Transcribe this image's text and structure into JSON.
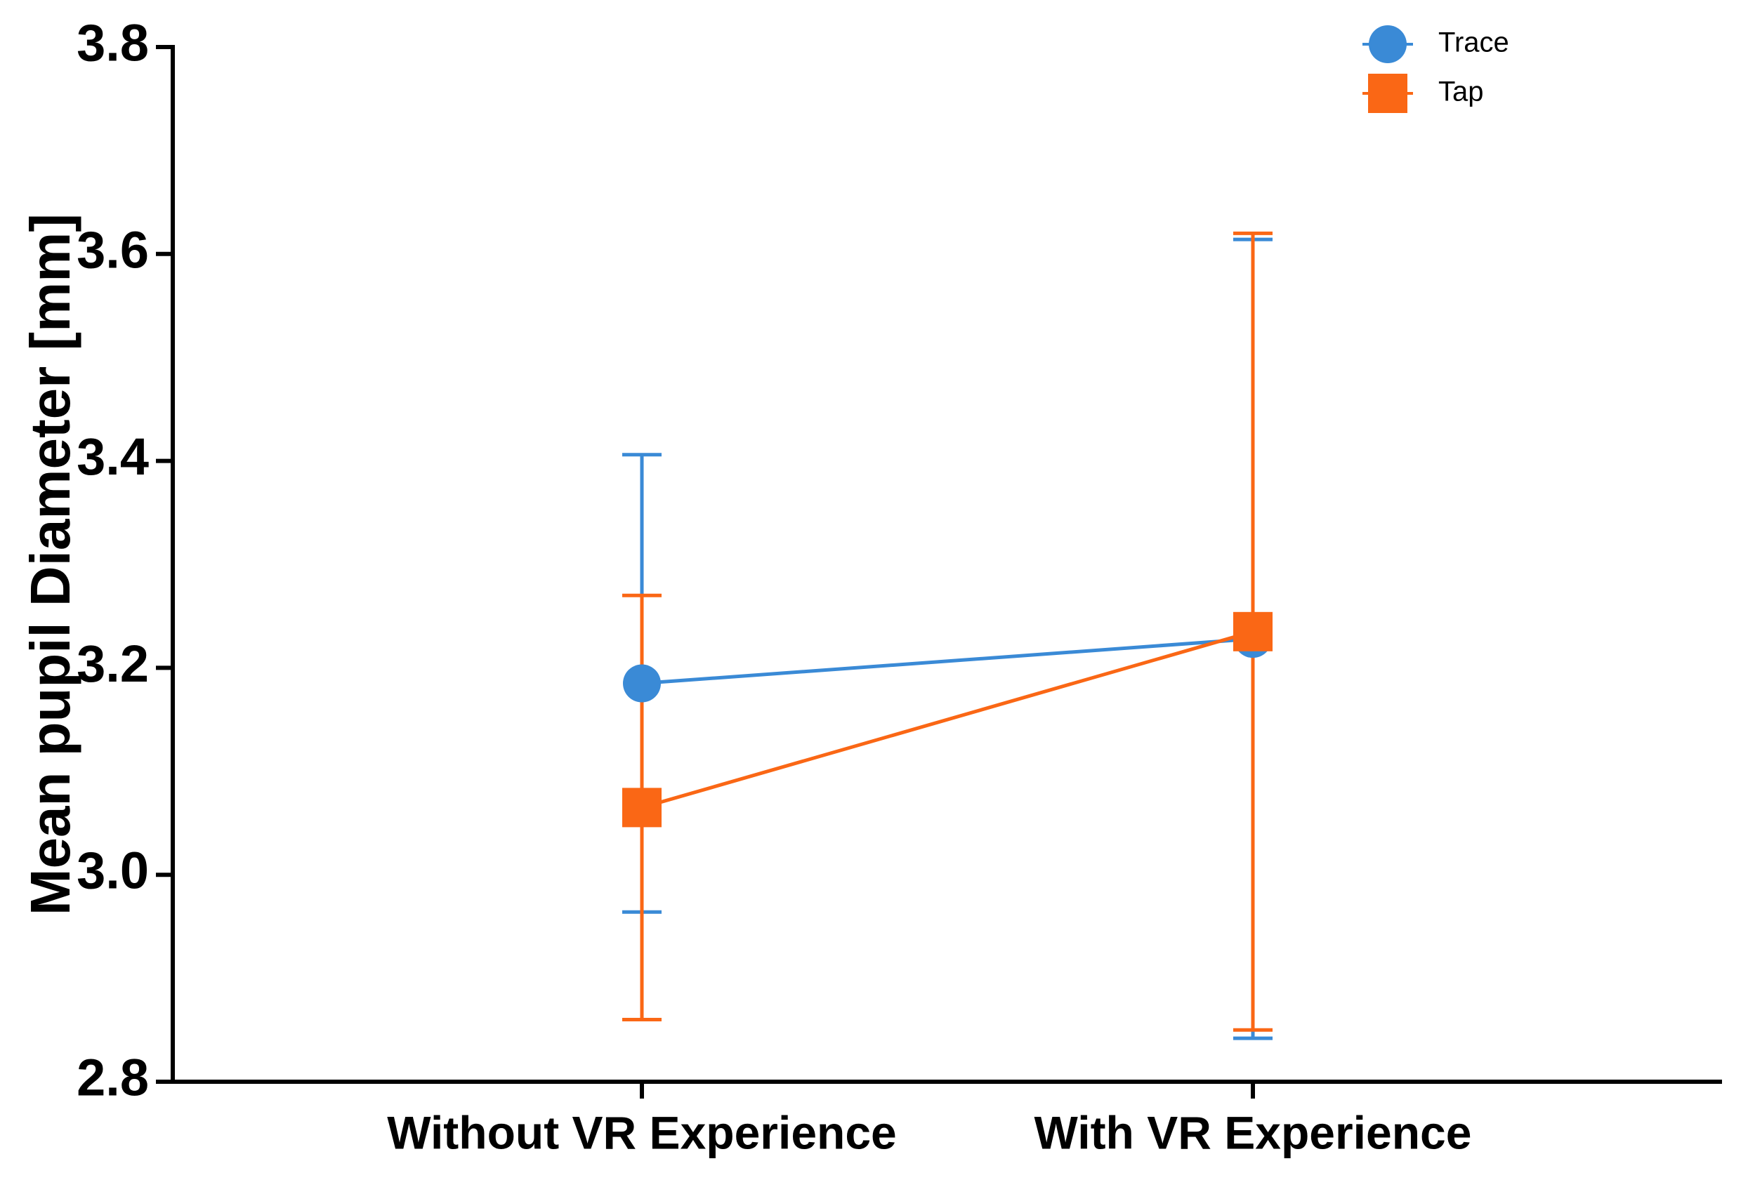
{
  "chart_data": {
    "type": "line",
    "y_label": "Mean pupil Diameter [mm]",
    "categories": [
      "Without VR Experience",
      "With VR Experience"
    ],
    "series": [
      {
        "name": "Trace",
        "color": "#3a8ad6",
        "marker": "circle",
        "values": [
          3.185,
          3.228
        ],
        "errors": [
          0.221,
          0.386
        ]
      },
      {
        "name": "Tap",
        "color": "#fa6715",
        "marker": "square",
        "values": [
          3.065,
          3.235
        ],
        "errors": [
          0.205,
          0.385
        ]
      }
    ],
    "ylim": [
      2.8,
      3.8
    ],
    "yticks": [
      2.8,
      {
        "value": 3,
        "label": "3.0"
      },
      3.2,
      3.4,
      3.6,
      3.8
    ],
    "legend": "top-right"
  }
}
